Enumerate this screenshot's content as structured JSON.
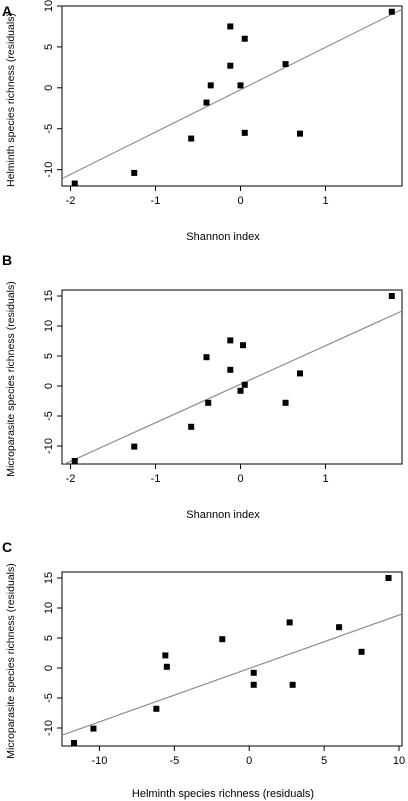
{
  "chart_data": [
    {
      "panel": "A",
      "type": "scatter",
      "xlabel": "Shannon index",
      "ylabel": "Helminth species richness (residuals)",
      "xlim": [
        -2.1,
        1.9
      ],
      "ylim": [
        -12,
        10
      ],
      "xticks": [
        -2,
        -1,
        0,
        1
      ],
      "yticks": [
        -10,
        -5,
        0,
        5,
        10
      ],
      "grid": false,
      "points": [
        {
          "x": -1.95,
          "y": -11.7
        },
        {
          "x": -1.25,
          "y": -10.4
        },
        {
          "x": -0.58,
          "y": -6.2
        },
        {
          "x": -0.4,
          "y": -1.8
        },
        {
          "x": -0.35,
          "y": 0.3
        },
        {
          "x": -0.12,
          "y": 7.5
        },
        {
          "x": -0.12,
          "y": 2.7
        },
        {
          "x": 0.0,
          "y": 0.3
        },
        {
          "x": 0.05,
          "y": 6.0
        },
        {
          "x": 0.05,
          "y": -5.5
        },
        {
          "x": 0.53,
          "y": 2.9
        },
        {
          "x": 0.7,
          "y": -5.6
        },
        {
          "x": 1.78,
          "y": 9.3
        }
      ],
      "fit_line": {
        "x": [
          -2.1,
          1.9
        ],
        "y": [
          -11.1,
          9.6
        ]
      }
    },
    {
      "panel": "B",
      "type": "scatter",
      "xlabel": "Shannon index",
      "ylabel": "Microparasite species richness (residuals)",
      "xlim": [
        -2.1,
        1.9
      ],
      "ylim": [
        -13,
        16
      ],
      "xticks": [
        -2,
        -1,
        0,
        1
      ],
      "yticks": [
        -10,
        -5,
        0,
        5,
        10,
        15
      ],
      "grid": false,
      "points": [
        {
          "x": -1.95,
          "y": -12.5
        },
        {
          "x": -1.25,
          "y": -10.1
        },
        {
          "x": -0.58,
          "y": -6.8
        },
        {
          "x": -0.4,
          "y": 4.8
        },
        {
          "x": -0.38,
          "y": -2.8
        },
        {
          "x": -0.12,
          "y": 7.6
        },
        {
          "x": -0.12,
          "y": 2.7
        },
        {
          "x": 0.0,
          "y": -0.8
        },
        {
          "x": 0.03,
          "y": 6.8
        },
        {
          "x": 0.05,
          "y": 0.2
        },
        {
          "x": 0.53,
          "y": -2.8
        },
        {
          "x": 0.7,
          "y": 2.1
        },
        {
          "x": 1.78,
          "y": 15.0
        }
      ],
      "fit_line": {
        "x": [
          -2.1,
          1.9
        ],
        "y": [
          -13.2,
          12.5
        ]
      }
    },
    {
      "panel": "C",
      "type": "scatter",
      "xlabel": "Helminth species richness (residuals)",
      "ylabel": "Microparasite species richness (residuals)",
      "xlim": [
        -12.5,
        10.2
      ],
      "ylim": [
        -13,
        16
      ],
      "xticks": [
        -10,
        -5,
        0,
        5,
        10
      ],
      "yticks": [
        -10,
        -5,
        0,
        5,
        10,
        15
      ],
      "grid": false,
      "points": [
        {
          "x": -11.7,
          "y": -12.5
        },
        {
          "x": -10.4,
          "y": -10.1
        },
        {
          "x": -6.2,
          "y": -6.8
        },
        {
          "x": -5.6,
          "y": 2.1
        },
        {
          "x": -5.5,
          "y": 0.2
        },
        {
          "x": -1.8,
          "y": 4.8
        },
        {
          "x": 0.3,
          "y": -0.8
        },
        {
          "x": 0.3,
          "y": -2.8
        },
        {
          "x": 2.7,
          "y": 7.6
        },
        {
          "x": 2.9,
          "y": -2.8
        },
        {
          "x": 6.0,
          "y": 6.8
        },
        {
          "x": 7.5,
          "y": 2.7
        },
        {
          "x": 9.3,
          "y": 15.0
        }
      ],
      "fit_line": {
        "x": [
          -12.5,
          10.2
        ],
        "y": [
          -11.2,
          9.0
        ]
      }
    }
  ],
  "style": {
    "point_color": "#000000",
    "line_color": "#8c8c8c",
    "axis_color": "#000000"
  }
}
